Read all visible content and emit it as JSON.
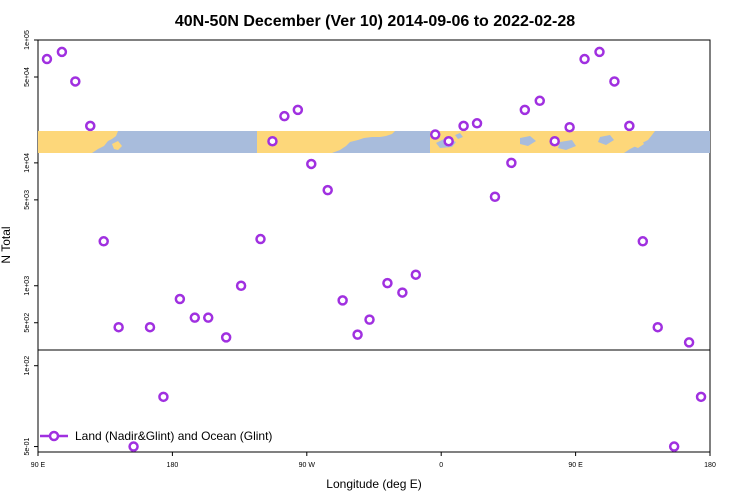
{
  "chart_data": {
    "type": "scatter",
    "title": "40N-50N December (Ver 10)   2014-09-06 to 2022-02-28",
    "xlabel": "Longitude (deg E)",
    "ylabel": "N Total",
    "x_ticks": [
      {
        "value": 90,
        "label": "90 E"
      },
      {
        "value": 180,
        "label": "180"
      },
      {
        "value": 270,
        "label": "90 W"
      },
      {
        "value": 360,
        "label": "0"
      },
      {
        "value": 450,
        "label": "90 E"
      },
      {
        "value": 540,
        "label": "180"
      }
    ],
    "upper_panel": {
      "scale": "log",
      "ylim": [
        300,
        100000
      ],
      "y_ticks": [
        {
          "value": 100000,
          "label": "1e+05"
        },
        {
          "value": 50000,
          "label": "5e+04"
        },
        {
          "value": 10000,
          "label": "1e+04"
        },
        {
          "value": 5000,
          "label": "5e+03"
        },
        {
          "value": 1000,
          "label": "1e+03"
        },
        {
          "value": 500,
          "label": "5e+02"
        }
      ]
    },
    "lower_panel": {
      "scale": "log",
      "ylim": [
        0.35,
        280
      ],
      "y_ticks": [
        {
          "value": 100,
          "label": "1e+02"
        },
        {
          "value": 0.5,
          "label": "5e-01"
        }
      ]
    },
    "series": [
      {
        "name": "Land (Nadir&Glint) and Ocean (Glint)",
        "color": "#a030e0",
        "upper_points": [
          {
            "x": 96,
            "y": 70000
          },
          {
            "x": 106,
            "y": 80000
          },
          {
            "x": 115,
            "y": 46000
          },
          {
            "x": 125,
            "y": 20000
          },
          {
            "x": 134,
            "y": 2300
          },
          {
            "x": 144,
            "y": 460
          },
          {
            "x": 165,
            "y": 460
          },
          {
            "x": 185,
            "y": 780
          },
          {
            "x": 195,
            "y": 550
          },
          {
            "x": 204,
            "y": 550
          },
          {
            "x": 216,
            "y": 380
          },
          {
            "x": 226,
            "y": 1000
          },
          {
            "x": 239,
            "y": 2400
          },
          {
            "x": 247,
            "y": 15000
          },
          {
            "x": 255,
            "y": 24000
          },
          {
            "x": 264,
            "y": 27000
          },
          {
            "x": 273,
            "y": 9800
          },
          {
            "x": 284,
            "y": 6000
          },
          {
            "x": 294,
            "y": 760
          },
          {
            "x": 304,
            "y": 400
          },
          {
            "x": 312,
            "y": 530
          },
          {
            "x": 324,
            "y": 1050
          },
          {
            "x": 334,
            "y": 880
          },
          {
            "x": 343,
            "y": 1230
          },
          {
            "x": 356,
            "y": 17000
          },
          {
            "x": 365,
            "y": 15000
          },
          {
            "x": 375,
            "y": 20000
          },
          {
            "x": 384,
            "y": 21000
          },
          {
            "x": 396,
            "y": 5300
          },
          {
            "x": 407,
            "y": 10000
          },
          {
            "x": 416,
            "y": 27000
          },
          {
            "x": 426,
            "y": 32000
          },
          {
            "x": 436,
            "y": 15000
          },
          {
            "x": 446,
            "y": 19500
          },
          {
            "x": 456,
            "y": 70000
          },
          {
            "x": 466,
            "y": 80000
          },
          {
            "x": 476,
            "y": 46000
          },
          {
            "x": 486,
            "y": 20000
          },
          {
            "x": 495,
            "y": 2300
          },
          {
            "x": 505,
            "y": 460
          }
        ],
        "lower_points": [
          {
            "x": 154,
            "y": 0.5
          },
          {
            "x": 174,
            "y": 13
          },
          {
            "x": 516,
            "y": 0.5
          },
          {
            "x": 526,
            "y": 460
          },
          {
            "x": 534,
            "y": 13
          }
        ]
      }
    ],
    "legend": {
      "position": "bottom-left",
      "label": "Land (Nadir&Glint) and Ocean (Glint)"
    },
    "grid": false
  }
}
